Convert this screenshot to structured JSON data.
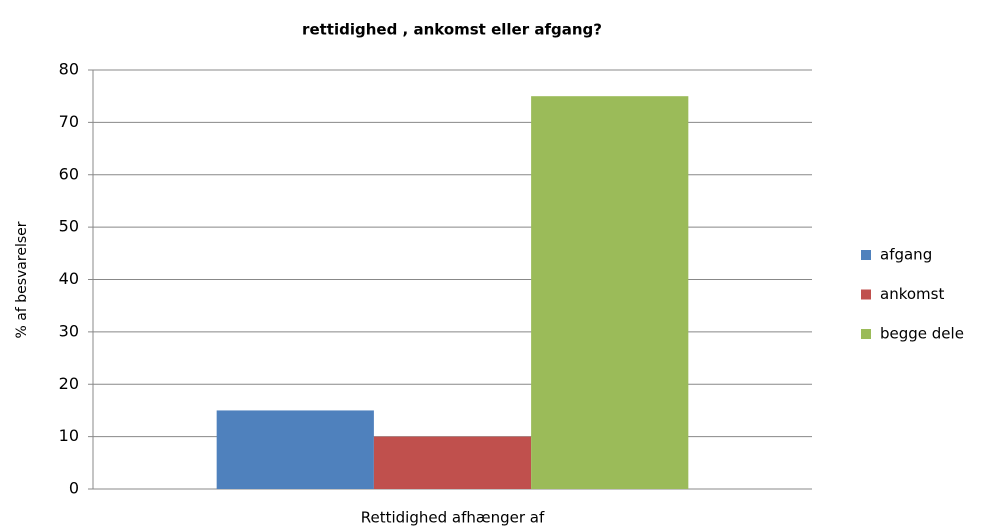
{
  "chart_data": {
    "type": "bar",
    "title": "rettidighed , ankomst eller afgang?",
    "ylabel": "% af besvarelser",
    "categories": [
      "Rettidighed afhænger af"
    ],
    "series": [
      {
        "name": "afgang",
        "color": "#4f81bd",
        "values": [
          15
        ]
      },
      {
        "name": "ankomst",
        "color": "#c0504d",
        "values": [
          10
        ]
      },
      {
        "name": "begge dele",
        "color": "#9bbb59",
        "values": [
          75
        ]
      }
    ],
    "ylim": [
      0,
      80
    ],
    "yticks": [
      0,
      10,
      20,
      30,
      40,
      50,
      60,
      70,
      80
    ],
    "grid": true,
    "legend": "right"
  }
}
